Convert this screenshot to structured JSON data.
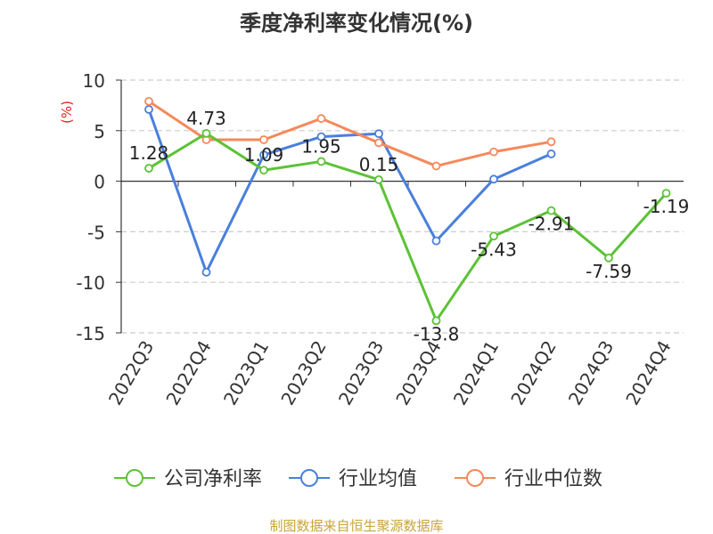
{
  "chart_data": {
    "type": "line",
    "title": "季度净利率变化情况(%)",
    "ylabel": "(%)",
    "xlabel": "",
    "categories": [
      "2022Q3",
      "2022Q4",
      "2023Q1",
      "2023Q2",
      "2023Q3",
      "2023Q4",
      "2024Q1",
      "2024Q2",
      "2024Q3",
      "2024Q4"
    ],
    "ylim": [
      -15,
      10
    ],
    "yticks": [
      10,
      5,
      0,
      -5,
      -10,
      -15
    ],
    "grid": true,
    "legend_position": "bottom-center",
    "series": [
      {
        "name": "公司净利率",
        "color": "#5cc236",
        "values": [
          1.28,
          4.73,
          1.09,
          1.95,
          0.15,
          -13.8,
          -5.43,
          -2.91,
          -7.59,
          -1.19
        ],
        "labels": [
          "1.28",
          "4.73",
          "1.09",
          "1.95",
          "0.15",
          "-13.8",
          "-5.43",
          "-2.91",
          "-7.59",
          "-1.19"
        ]
      },
      {
        "name": "行业均值",
        "color": "#4a7fdc",
        "values": [
          7.1,
          -9.0,
          2.6,
          4.4,
          4.7,
          -5.9,
          0.2,
          2.7,
          null,
          null
        ]
      },
      {
        "name": "行业中位数",
        "color": "#f5895a",
        "values": [
          7.9,
          4.1,
          4.1,
          6.2,
          3.8,
          1.5,
          2.9,
          3.9,
          null,
          null
        ]
      }
    ],
    "source_note": "制图数据来自恒生聚源数据库"
  }
}
